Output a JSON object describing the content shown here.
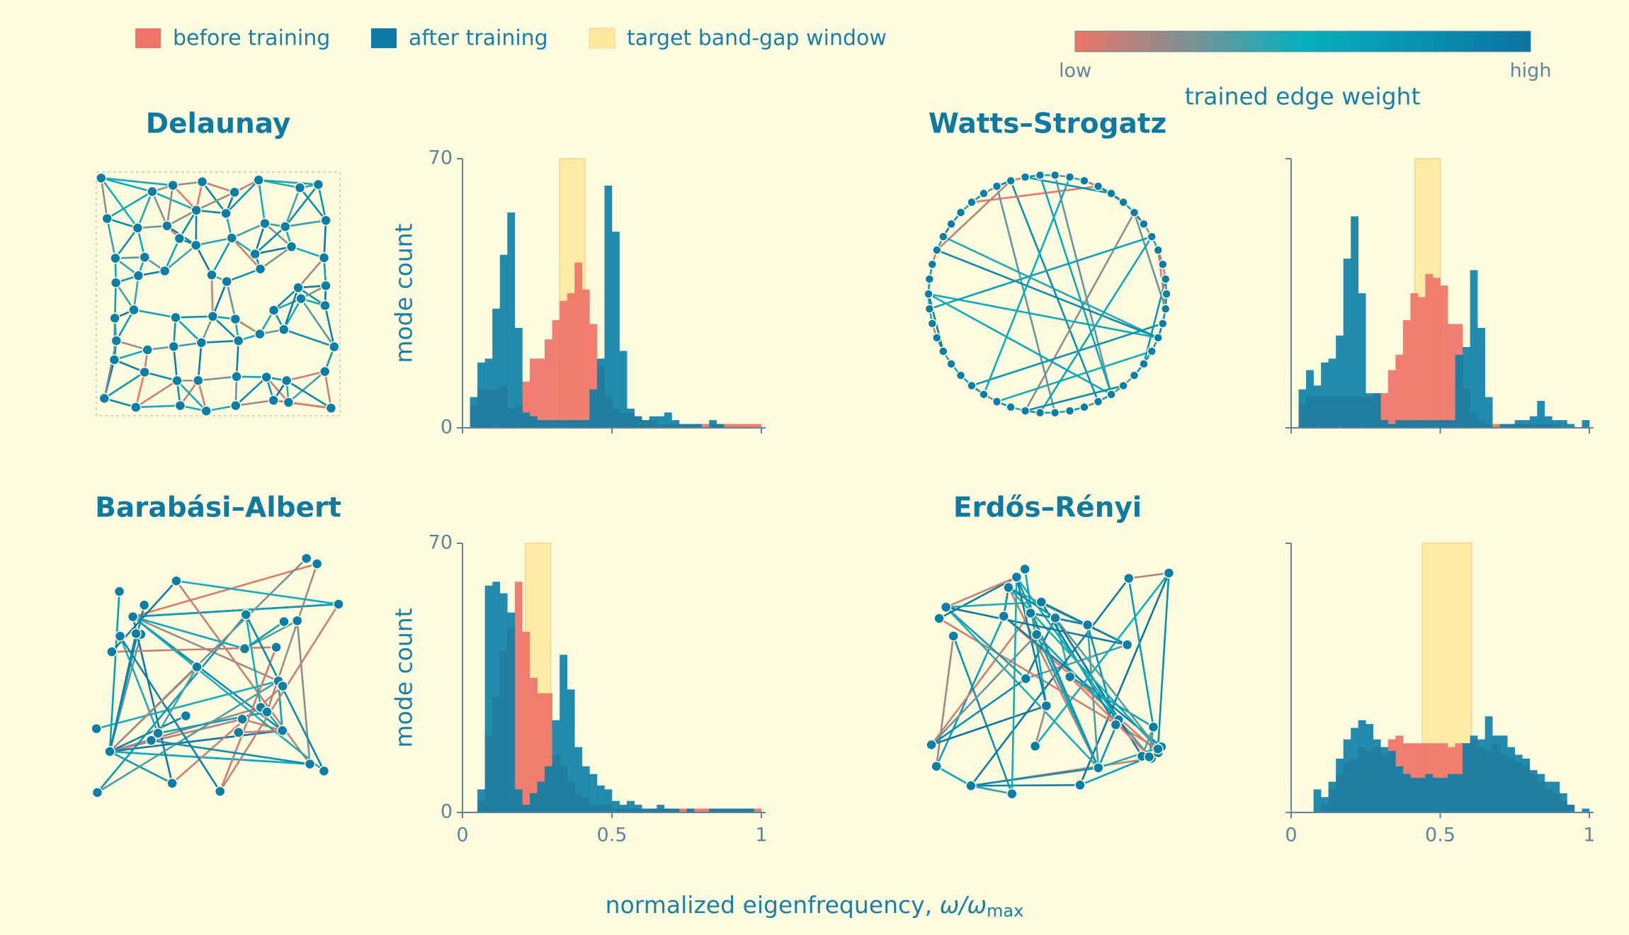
{
  "figure": {
    "legend": [
      {
        "label": "before training",
        "color": "#ef7467"
      },
      {
        "label": "after training",
        "color": "#0b7ea5"
      },
      {
        "label": "target band-gap window",
        "color": "#fdeaa0"
      }
    ],
    "colorbar": {
      "low": "low",
      "high": "high",
      "label": "trained edge weight",
      "colors": [
        "#ef7467",
        "#07b0be",
        "#0b74a0"
      ]
    },
    "xlabel": {
      "text": "normalized eigenfrequency, ",
      "symbol": "ω/ω",
      "subscript": "max"
    }
  },
  "chart_data": [
    {
      "type": "histogram",
      "title": "Delaunay",
      "ylabel": "mode count",
      "xlim": [
        0,
        1
      ],
      "ylim": [
        0,
        70
      ],
      "xticks": [
        0,
        0.5,
        1
      ],
      "yticks": [
        0,
        70
      ],
      "window": [
        0.325,
        0.41
      ],
      "bins": [
        0,
        0.025,
        0.05,
        0.075,
        0.1,
        0.125,
        0.15,
        0.175,
        0.2,
        0.225,
        0.25,
        0.275,
        0.3,
        0.325,
        0.35,
        0.375,
        0.4,
        0.425,
        0.45,
        0.475,
        0.5,
        0.525,
        0.55,
        0.575,
        0.6,
        0.625,
        0.65,
        0.675,
        0.7,
        0.725,
        0.75,
        0.775,
        0.8,
        0.825,
        0.85,
        0.875,
        0.9,
        0.925,
        0.95,
        0.975,
        1
      ],
      "series": [
        {
          "color": "#ef7467",
          "values": [
            0,
            6,
            10,
            10,
            10,
            11,
            5,
            6,
            12,
            18,
            18,
            23,
            28,
            33,
            35,
            43,
            36,
            27,
            16,
            8,
            5,
            4,
            4,
            3,
            2,
            2,
            1,
            1,
            1,
            1,
            1,
            1,
            1,
            1,
            1,
            1,
            1,
            1,
            1,
            1
          ]
        },
        {
          "color": "#0b7ea5",
          "values": [
            0,
            8,
            17,
            18,
            31,
            45,
            56,
            26,
            4,
            3,
            2,
            2,
            2,
            2,
            2,
            2,
            2,
            10,
            18,
            63,
            51,
            20,
            5,
            3,
            2,
            3,
            3,
            4,
            2,
            1,
            1,
            1,
            0,
            2,
            1,
            0,
            0,
            0,
            0,
            0
          ]
        }
      ]
    },
    {
      "type": "histogram",
      "title": "Watts–Strogatz",
      "xlim": [
        0,
        1
      ],
      "ylim": [
        0,
        70
      ],
      "xticks": [
        0,
        0.5,
        1
      ],
      "yticks": [
        0,
        70
      ],
      "window": [
        0.415,
        0.5
      ],
      "bins": [
        0,
        0.025,
        0.05,
        0.075,
        0.1,
        0.125,
        0.15,
        0.175,
        0.2,
        0.225,
        0.25,
        0.275,
        0.3,
        0.325,
        0.35,
        0.375,
        0.4,
        0.425,
        0.45,
        0.475,
        0.5,
        0.525,
        0.55,
        0.575,
        0.6,
        0.625,
        0.65,
        0.675,
        0.7,
        0.725,
        0.75,
        0.775,
        0.8,
        0.825,
        0.85,
        0.875,
        0.9,
        0.925,
        0.95,
        0.975,
        1
      ],
      "series": [
        {
          "color": "#ef7467",
          "values": [
            0,
            6,
            8,
            8,
            8,
            8,
            8,
            8,
            8,
            8,
            8,
            9,
            9,
            15,
            19,
            28,
            35,
            34,
            40,
            39,
            37,
            27,
            27,
            10,
            4,
            2,
            1,
            1,
            1,
            1,
            1,
            1,
            1,
            1,
            1,
            1,
            0,
            0,
            0,
            0
          ]
        },
        {
          "color": "#0b7ea5",
          "values": [
            0,
            10,
            15,
            11,
            17,
            18,
            24,
            44,
            55,
            35,
            9,
            9,
            2,
            1,
            2,
            2,
            2,
            2,
            2,
            2,
            2,
            2,
            19,
            21,
            41,
            26,
            8,
            0,
            1,
            1,
            2,
            2,
            3,
            7,
            3,
            2,
            2,
            1,
            0,
            2
          ]
        }
      ]
    },
    {
      "type": "histogram",
      "title": "Barabási–Albert",
      "ylabel": "mode count",
      "xlim": [
        0,
        1
      ],
      "ylim": [
        0,
        70
      ],
      "xticks": [
        0,
        0.5,
        1
      ],
      "yticks": [
        0,
        70
      ],
      "window": [
        0.21,
        0.295
      ],
      "bins": [
        0,
        0.025,
        0.05,
        0.075,
        0.1,
        0.125,
        0.15,
        0.175,
        0.2,
        0.225,
        0.25,
        0.275,
        0.3,
        0.325,
        0.35,
        0.375,
        0.4,
        0.425,
        0.45,
        0.475,
        0.5,
        0.525,
        0.55,
        0.575,
        0.6,
        0.625,
        0.65,
        0.675,
        0.7,
        0.725,
        0.75,
        0.775,
        0.8,
        0.825,
        0.85,
        0.875,
        0.9,
        0.925,
        0.95,
        0.975,
        1
      ],
      "series": [
        {
          "color": "#ef7467",
          "values": [
            0,
            0,
            3,
            20,
            30,
            42,
            48,
            60,
            47,
            35,
            31,
            31,
            15,
            12,
            8,
            5,
            4,
            2,
            2,
            2,
            1,
            1,
            1,
            1,
            1,
            1,
            1,
            1,
            1,
            1,
            1,
            1,
            1,
            1,
            1,
            1,
            1,
            1,
            1,
            1
          ]
        },
        {
          "color": "#0b7ea5",
          "values": [
            0,
            0,
            6,
            59,
            60,
            57,
            52,
            6,
            2,
            5,
            8,
            12,
            24,
            41,
            32,
            17,
            12,
            10,
            7,
            6,
            3,
            2,
            3,
            2,
            1,
            1,
            2,
            1,
            1,
            0,
            1,
            0,
            0,
            1,
            1,
            1,
            1,
            1,
            1,
            0
          ]
        }
      ]
    },
    {
      "type": "histogram",
      "title": "Erdős–Rényi",
      "xlim": [
        0,
        1
      ],
      "ylim": [
        0,
        70
      ],
      "xticks": [
        0,
        0.5,
        1
      ],
      "yticks": [
        0,
        70
      ],
      "window": [
        0.44,
        0.605
      ],
      "bins": [
        0,
        0.025,
        0.05,
        0.075,
        0.1,
        0.125,
        0.15,
        0.175,
        0.2,
        0.225,
        0.25,
        0.275,
        0.3,
        0.325,
        0.35,
        0.375,
        0.4,
        0.425,
        0.45,
        0.475,
        0.5,
        0.525,
        0.55,
        0.575,
        0.6,
        0.625,
        0.65,
        0.675,
        0.7,
        0.725,
        0.75,
        0.775,
        0.8,
        0.825,
        0.85,
        0.875,
        0.9,
        0.925,
        0.95,
        0.975,
        1
      ],
      "series": [
        {
          "color": "#ef7467",
          "values": [
            0,
            0,
            0,
            0,
            2,
            6,
            10,
            13,
            14,
            17,
            16,
            17,
            15,
            19,
            20,
            18,
            18,
            18,
            18,
            18,
            18,
            17,
            18,
            18,
            19,
            17,
            16,
            18,
            15,
            14,
            13,
            12,
            10,
            8,
            6,
            5,
            3,
            2,
            0,
            0
          ]
        },
        {
          "color": "#0b7ea5",
          "values": [
            0,
            0,
            0,
            6,
            4,
            8,
            14,
            19,
            22,
            24,
            23,
            19,
            17,
            16,
            12,
            10,
            9,
            9,
            10,
            9,
            9,
            10,
            10,
            18,
            20,
            19,
            25,
            20,
            20,
            17,
            15,
            14,
            11,
            10,
            8,
            8,
            5,
            2,
            0,
            1
          ]
        }
      ]
    }
  ]
}
